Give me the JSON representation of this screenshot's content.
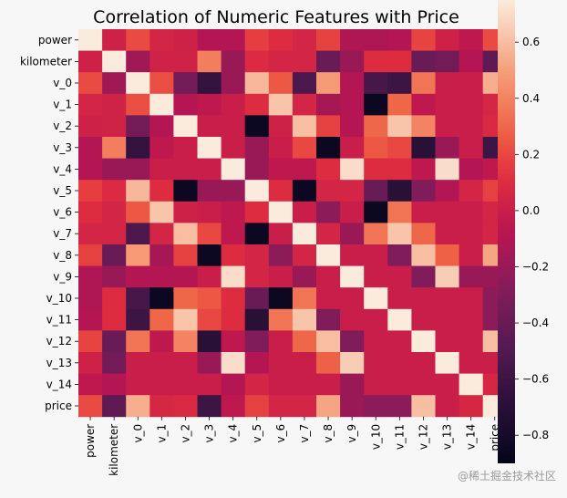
{
  "chart_data": {
    "type": "heatmap",
    "title": "Correlation of Numeric Features with Price",
    "labels": [
      "power",
      "kilometer",
      "v_0",
      "v_1",
      "v_2",
      "v_3",
      "v_4",
      "v_5",
      "v_6",
      "v_7",
      "v_8",
      "v_9",
      "v_10",
      "v_11",
      "v_12",
      "v_13",
      "v_14",
      "price"
    ],
    "matrix": [
      [
        1.0,
        0.02,
        0.21,
        0.05,
        0.02,
        -0.1,
        -0.1,
        0.17,
        0.1,
        0.05,
        0.18,
        -0.12,
        -0.12,
        -0.1,
        0.19,
        0.02,
        -0.05,
        0.21
      ],
      [
        0.02,
        1.0,
        -0.18,
        0.03,
        0.03,
        0.38,
        -0.2,
        0.09,
        0.05,
        0.05,
        -0.4,
        -0.2,
        0.1,
        0.1,
        -0.4,
        -0.35,
        -0.1,
        -0.44
      ],
      [
        0.21,
        -0.18,
        1.0,
        0.22,
        -0.35,
        -0.65,
        -0.2,
        0.58,
        0.25,
        -0.52,
        0.48,
        -0.1,
        -0.55,
        -0.6,
        0.35,
        0.0,
        0.0,
        0.55
      ],
      [
        0.05,
        0.03,
        0.22,
        1.0,
        -0.1,
        -0.05,
        0.0,
        0.1,
        0.62,
        0.05,
        -0.15,
        -0.1,
        -0.85,
        0.3,
        -0.05,
        0.0,
        0.0,
        0.06
      ],
      [
        0.02,
        0.03,
        -0.35,
        -0.1,
        1.0,
        0.0,
        0.0,
        -0.85,
        0.02,
        0.6,
        0.18,
        -0.1,
        0.3,
        0.62,
        0.4,
        0.0,
        0.0,
        0.08
      ],
      [
        -0.1,
        0.38,
        -0.65,
        -0.05,
        0.0,
        1.0,
        0.0,
        -0.2,
        0.0,
        0.2,
        -0.85,
        0.0,
        0.25,
        0.2,
        -0.7,
        -0.2,
        0.0,
        -0.6
      ],
      [
        -0.1,
        -0.2,
        -0.2,
        0.0,
        0.0,
        0.0,
        1.0,
        -0.2,
        -0.05,
        -0.05,
        0.1,
        0.7,
        0.1,
        0.1,
        -0.05,
        0.7,
        -0.1,
        -0.05
      ],
      [
        0.17,
        0.09,
        0.58,
        0.1,
        -0.85,
        -0.2,
        -0.2,
        1.0,
        0.1,
        -0.85,
        0.05,
        0.05,
        -0.4,
        -0.7,
        -0.3,
        -0.1,
        0.05,
        0.18
      ],
      [
        0.1,
        0.05,
        0.25,
        0.62,
        0.02,
        0.0,
        -0.05,
        0.1,
        1.0,
        0.0,
        -0.25,
        0.0,
        -0.85,
        0.35,
        0.0,
        0.0,
        0.0,
        0.05
      ],
      [
        0.05,
        0.05,
        -0.52,
        0.05,
        0.6,
        0.2,
        -0.05,
        -0.85,
        0.0,
        1.0,
        0.05,
        -0.2,
        0.35,
        0.62,
        0.3,
        0.0,
        0.0,
        0.05
      ],
      [
        0.18,
        -0.4,
        0.48,
        -0.15,
        0.18,
        -0.85,
        0.1,
        0.05,
        -0.25,
        0.05,
        1.0,
        0.0,
        0.0,
        -0.3,
        0.6,
        0.28,
        0.0,
        0.52
      ],
      [
        -0.12,
        -0.2,
        -0.1,
        -0.1,
        -0.1,
        0.0,
        0.7,
        0.05,
        0.0,
        -0.2,
        0.0,
        1.0,
        0.0,
        0.0,
        -0.3,
        0.65,
        -0.2,
        -0.2
      ],
      [
        -0.12,
        0.1,
        -0.55,
        -0.85,
        0.3,
        0.25,
        0.1,
        -0.4,
        -0.85,
        0.35,
        0.0,
        0.0,
        1.0,
        0.0,
        0.0,
        0.0,
        0.0,
        -0.25
      ],
      [
        -0.1,
        0.1,
        -0.6,
        0.3,
        0.62,
        0.2,
        0.1,
        -0.7,
        0.35,
        0.62,
        -0.3,
        0.0,
        0.0,
        1.0,
        0.0,
        0.0,
        0.0,
        -0.25
      ],
      [
        0.19,
        -0.4,
        0.35,
        -0.05,
        0.4,
        -0.7,
        -0.05,
        -0.3,
        0.0,
        0.3,
        0.6,
        -0.3,
        0.0,
        0.0,
        1.0,
        0.0,
        0.0,
        0.6
      ],
      [
        0.02,
        -0.35,
        0.0,
        0.0,
        0.0,
        -0.2,
        0.7,
        -0.1,
        0.0,
        0.0,
        0.28,
        0.65,
        0.0,
        0.0,
        0.0,
        1.0,
        0.0,
        0.0
      ],
      [
        -0.05,
        -0.1,
        0.0,
        0.0,
        0.0,
        0.0,
        -0.1,
        0.05,
        0.0,
        0.0,
        0.0,
        -0.2,
        0.0,
        0.0,
        0.0,
        0.0,
        1.0,
        0.06
      ],
      [
        0.21,
        -0.44,
        0.55,
        0.06,
        0.08,
        -0.6,
        -0.05,
        0.18,
        0.05,
        0.05,
        0.52,
        -0.2,
        -0.25,
        -0.25,
        0.6,
        0.0,
        0.06,
        1.0
      ]
    ],
    "colorbar": {
      "vmin": -0.9,
      "vmax": 0.75,
      "ticks": [
        -0.8,
        -0.6,
        -0.4,
        -0.2,
        0.0,
        0.2,
        0.4,
        0.6
      ],
      "tick_labels": [
        "−0.8",
        "−0.6",
        "−0.4",
        "−0.2",
        "0.0",
        "0.2",
        "0.4",
        "0.6"
      ]
    },
    "colormap": "rocket"
  },
  "watermark": "@稀土掘金技术社区"
}
